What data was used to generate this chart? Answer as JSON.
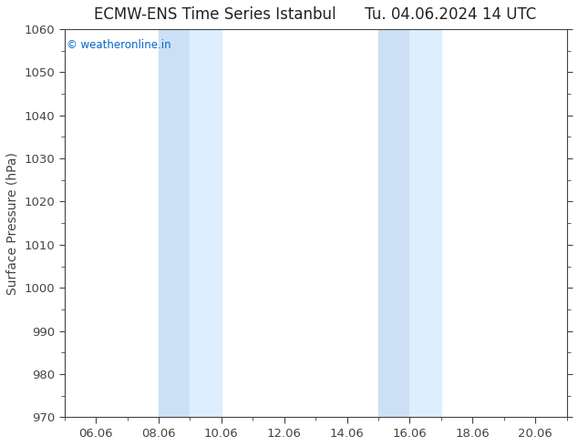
{
  "title": "ECMW-ENS Time Series Istanbul      Tu. 04.06.2024 14 UTC",
  "ylabel": "Surface Pressure (hPa)",
  "ylim": [
    970,
    1060
  ],
  "yticks": [
    970,
    980,
    990,
    1000,
    1010,
    1020,
    1030,
    1040,
    1050,
    1060
  ],
  "xlim_start": 5.0,
  "xlim_end": 21.0,
  "xtick_positions": [
    6,
    8,
    10,
    12,
    14,
    16,
    18,
    20
  ],
  "xtick_labels": [
    "06.06",
    "08.06",
    "10.06",
    "12.06",
    "14.06",
    "16.06",
    "18.06",
    "20.06"
  ],
  "shaded_bands": [
    {
      "xmin": 8.0,
      "xmax": 9.0
    },
    {
      "xmin": 9.0,
      "xmax": 10.0
    },
    {
      "xmin": 15.0,
      "xmax": 16.0
    },
    {
      "xmin": 16.0,
      "xmax": 17.0
    }
  ],
  "band_color_dark": "#cce0f5",
  "band_color_light": "#ddeeff",
  "background_color": "#ffffff",
  "copyright_text": "© weatheronline.in",
  "copyright_color": "#0066cc",
  "title_color": "#222222",
  "axis_color": "#444444",
  "tick_color": "#444444",
  "title_fontsize": 12,
  "label_fontsize": 10,
  "tick_fontsize": 9.5,
  "copyright_fontsize": 8.5
}
